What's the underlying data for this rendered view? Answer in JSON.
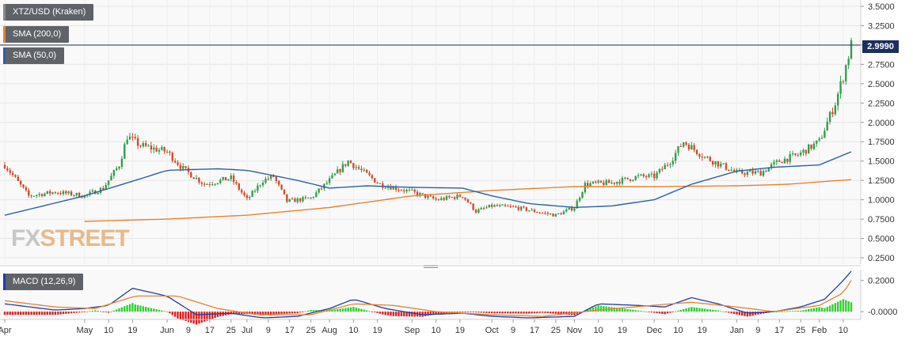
{
  "logo": {
    "text_fx": "FX",
    "text_street": "STREET"
  },
  "price_panel": {
    "legends": [
      {
        "label": "XTZ/USD (Kraken)",
        "color": "#5f6368"
      },
      {
        "label": "SMA (200,0)",
        "color": "#e8822f"
      },
      {
        "label": "SMA (50,0)",
        "color": "#2c5fa8"
      }
    ],
    "current_price_tag": "2.9990"
  },
  "macd_panel": {
    "legend": "MACD (12,26,9)",
    "legend_color": "#1f3ea8"
  },
  "x_axis": {
    "tick_labels": [
      "Apr",
      "May",
      "10",
      "19",
      "Jun",
      "9",
      "17",
      "25",
      "Jul",
      "9",
      "17",
      "25",
      "Aug",
      "10",
      "19",
      "Sep",
      "10",
      "19",
      "Oct",
      "9",
      "17",
      "25",
      "Nov",
      "10",
      "19",
      "Dec",
      "10",
      "19",
      "Jan",
      "9",
      "17",
      "25",
      "Feb",
      "10"
    ]
  },
  "chart_data": [
    {
      "type": "candlestick",
      "title": "XTZ/USD (Kraken)",
      "x_range": [
        "2019-04-01",
        "2020-02-13"
      ],
      "ylim": [
        0.25,
        3.5
      ],
      "y_ticks": [
        "3.5000",
        "3.2500",
        "3.0000",
        "2.7500",
        "2.5000",
        "2.2500",
        "2.0000",
        "1.7500",
        "1.5000",
        "1.2500",
        "1.0000",
        "0.7500",
        "0.5000",
        "0.2500"
      ],
      "current_price": 2.999,
      "colors": {
        "up": "#2e9e4a",
        "down": "#d04a2a"
      },
      "price_keypoints": [
        [
          "2019-04-01",
          1.45
        ],
        [
          "2019-04-10",
          1.05
        ],
        [
          "2019-04-20",
          1.1
        ],
        [
          "2019-05-01",
          1.05
        ],
        [
          "2019-05-08",
          1.15
        ],
        [
          "2019-05-14",
          1.45
        ],
        [
          "2019-05-17",
          1.82
        ],
        [
          "2019-05-22",
          1.7
        ],
        [
          "2019-06-01",
          1.62
        ],
        [
          "2019-06-07",
          1.4
        ],
        [
          "2019-06-15",
          1.2
        ],
        [
          "2019-06-25",
          1.28
        ],
        [
          "2019-07-01",
          1.0
        ],
        [
          "2019-07-07",
          1.25
        ],
        [
          "2019-07-11",
          1.3
        ],
        [
          "2019-07-16",
          0.98
        ],
        [
          "2019-07-25",
          1.02
        ],
        [
          "2019-08-01",
          1.25
        ],
        [
          "2019-08-08",
          1.5
        ],
        [
          "2019-08-12",
          1.4
        ],
        [
          "2019-08-20",
          1.2
        ],
        [
          "2019-09-01",
          1.1
        ],
        [
          "2019-09-10",
          1.0
        ],
        [
          "2019-09-20",
          1.05
        ],
        [
          "2019-09-25",
          0.85
        ],
        [
          "2019-10-01",
          0.92
        ],
        [
          "2019-10-10",
          0.9
        ],
        [
          "2019-10-20",
          0.83
        ],
        [
          "2019-10-25",
          0.8
        ],
        [
          "2019-11-01",
          0.9
        ],
        [
          "2019-11-05",
          1.2
        ],
        [
          "2019-11-15",
          1.22
        ],
        [
          "2019-11-25",
          1.3
        ],
        [
          "2019-12-01",
          1.3
        ],
        [
          "2019-12-07",
          1.5
        ],
        [
          "2019-12-12",
          1.75
        ],
        [
          "2019-12-20",
          1.55
        ],
        [
          "2020-01-01",
          1.35
        ],
        [
          "2020-01-10",
          1.35
        ],
        [
          "2020-01-17",
          1.5
        ],
        [
          "2020-01-24",
          1.58
        ],
        [
          "2020-02-01",
          1.75
        ],
        [
          "2020-02-04",
          2.0
        ],
        [
          "2020-02-07",
          2.25
        ],
        [
          "2020-02-10",
          2.6
        ],
        [
          "2020-02-13",
          3.0
        ]
      ],
      "series": [
        {
          "name": "SMA (200,0)",
          "color": "#e8822f",
          "start": "2019-05-01",
          "keypoints": [
            [
              "2019-05-01",
              0.72
            ],
            [
              "2019-06-01",
              0.75
            ],
            [
              "2019-07-01",
              0.8
            ],
            [
              "2019-08-01",
              0.9
            ],
            [
              "2019-09-01",
              1.05
            ],
            [
              "2019-10-01",
              1.12
            ],
            [
              "2019-11-01",
              1.17
            ],
            [
              "2019-12-01",
              1.17
            ],
            [
              "2020-01-01",
              1.18
            ],
            [
              "2020-01-20",
              1.2
            ],
            [
              "2020-02-13",
              1.26
            ]
          ]
        },
        {
          "name": "SMA (50,0)",
          "color": "#2c5fa8",
          "start": "2019-04-01",
          "keypoints": [
            [
              "2019-04-01",
              0.8
            ],
            [
              "2019-05-01",
              1.05
            ],
            [
              "2019-05-20",
              1.25
            ],
            [
              "2019-06-01",
              1.38
            ],
            [
              "2019-06-20",
              1.4
            ],
            [
              "2019-07-01",
              1.38
            ],
            [
              "2019-07-20",
              1.25
            ],
            [
              "2019-08-01",
              1.15
            ],
            [
              "2019-08-15",
              1.18
            ],
            [
              "2019-09-01",
              1.16
            ],
            [
              "2019-09-20",
              1.15
            ],
            [
              "2019-10-01",
              1.05
            ],
            [
              "2019-10-15",
              0.95
            ],
            [
              "2019-11-01",
              0.9
            ],
            [
              "2019-11-15",
              0.92
            ],
            [
              "2019-12-01",
              1.0
            ],
            [
              "2019-12-15",
              1.2
            ],
            [
              "2020-01-01",
              1.37
            ],
            [
              "2020-01-15",
              1.42
            ],
            [
              "2020-02-01",
              1.45
            ],
            [
              "2020-02-13",
              1.62
            ]
          ]
        }
      ]
    },
    {
      "type": "macd",
      "title": "MACD (12,26,9)",
      "x_range": [
        "2019-04-01",
        "2020-02-13"
      ],
      "ylim": [
        -0.05,
        0.3
      ],
      "y_ticks": [
        "0.2000",
        "-0.0000"
      ],
      "series": [
        {
          "name": "MACD",
          "color": "#1f3ea8",
          "keypoints": [
            [
              "2019-04-01",
              0.05
            ],
            [
              "2019-04-20",
              0.01
            ],
            [
              "2019-05-01",
              0.02
            ],
            [
              "2019-05-10",
              0.04
            ],
            [
              "2019-05-19",
              0.15
            ],
            [
              "2019-06-01",
              0.1
            ],
            [
              "2019-06-12",
              -0.02
            ],
            [
              "2019-06-25",
              -0.01
            ],
            [
              "2019-07-07",
              -0.04
            ],
            [
              "2019-07-20",
              -0.03
            ],
            [
              "2019-08-01",
              0.02
            ],
            [
              "2019-08-10",
              0.08
            ],
            [
              "2019-08-22",
              0.02
            ],
            [
              "2019-09-05",
              -0.02
            ],
            [
              "2019-09-20",
              -0.01
            ],
            [
              "2019-10-01",
              -0.03
            ],
            [
              "2019-10-15",
              -0.04
            ],
            [
              "2019-11-01",
              -0.03
            ],
            [
              "2019-11-10",
              0.05
            ],
            [
              "2019-11-25",
              0.04
            ],
            [
              "2019-12-05",
              0.03
            ],
            [
              "2019-12-15",
              0.09
            ],
            [
              "2019-12-25",
              0.05
            ],
            [
              "2020-01-05",
              -0.01
            ],
            [
              "2020-01-15",
              0.0
            ],
            [
              "2020-01-25",
              0.03
            ],
            [
              "2020-02-03",
              0.08
            ],
            [
              "2020-02-10",
              0.2
            ],
            [
              "2020-02-13",
              0.26
            ]
          ]
        },
        {
          "name": "Signal",
          "color": "#e8822f",
          "keypoints": [
            [
              "2019-04-01",
              0.07
            ],
            [
              "2019-04-20",
              0.03
            ],
            [
              "2019-05-05",
              0.02
            ],
            [
              "2019-05-20",
              0.1
            ],
            [
              "2019-06-05",
              0.1
            ],
            [
              "2019-06-20",
              0.02
            ],
            [
              "2019-07-05",
              -0.02
            ],
            [
              "2019-07-25",
              -0.02
            ],
            [
              "2019-08-10",
              0.05
            ],
            [
              "2019-08-25",
              0.04
            ],
            [
              "2019-09-10",
              0.0
            ],
            [
              "2019-10-01",
              -0.02
            ],
            [
              "2019-10-20",
              -0.03
            ],
            [
              "2019-11-10",
              0.01
            ],
            [
              "2019-11-30",
              0.04
            ],
            [
              "2019-12-15",
              0.06
            ],
            [
              "2020-01-01",
              0.03
            ],
            [
              "2020-01-15",
              0.0
            ],
            [
              "2020-02-01",
              0.04
            ],
            [
              "2020-02-10",
              0.12
            ],
            [
              "2020-02-13",
              0.2
            ]
          ]
        }
      ],
      "histogram_colors": {
        "positive": "#2ad32a",
        "negative": "#e01b1b"
      }
    }
  ]
}
